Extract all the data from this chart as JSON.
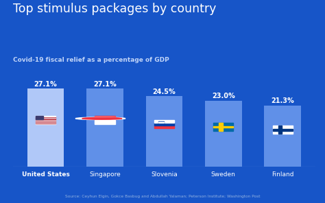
{
  "title": "Top stimulus packages by country",
  "subtitle": "Covid-19 fiscal relief as a percentage of GDP",
  "source": "Source: Ceyhun Elgin, Gokce Basbug and Abdullah Yalaman; Peterson Institute; Washington Post",
  "categories": [
    "United States",
    "Singapore",
    "Slovenia",
    "Sweden",
    "Finland"
  ],
  "values": [
    27.1,
    27.1,
    24.5,
    23.0,
    21.3
  ],
  "labels": [
    "27.1%",
    "27.1%",
    "24.5%",
    "23.0%",
    "21.3%"
  ],
  "background_color": "#1755c8",
  "bar_color": "#6090e8",
  "bar_color_us": "#b0c8f8",
  "title_color": "#ffffff",
  "subtitle_color": "#c0d4f8",
  "label_color": "#ffffff",
  "source_color": "#90b0e0",
  "xlabel_color": "#ffffff",
  "xlabel_bold": [
    true,
    false,
    false,
    false,
    false
  ],
  "ylim": [
    0,
    34
  ],
  "bar_width": 0.62
}
